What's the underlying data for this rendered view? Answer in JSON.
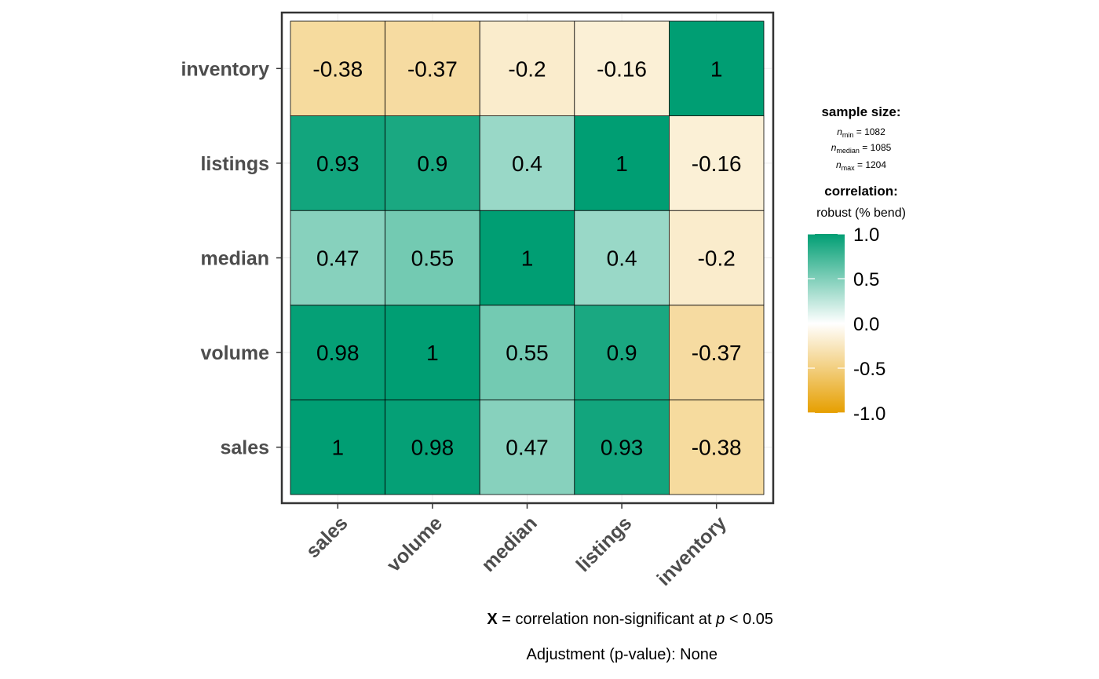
{
  "chart_data": {
    "type": "heatmap",
    "variables_x": [
      "sales",
      "volume",
      "median",
      "listings",
      "inventory"
    ],
    "variables_y": [
      "sales",
      "volume",
      "median",
      "listings",
      "inventory"
    ],
    "matrix": [
      [
        1,
        0.98,
        0.47,
        0.93,
        -0.38
      ],
      [
        0.98,
        1,
        0.55,
        0.9,
        -0.37
      ],
      [
        0.47,
        0.55,
        1,
        0.4,
        -0.2
      ],
      [
        0.93,
        0.9,
        0.4,
        1,
        -0.16
      ],
      [
        -0.38,
        -0.37,
        -0.2,
        -0.16,
        1
      ]
    ],
    "color_scale": {
      "low": "#E69F00",
      "mid": "#FFFFFF",
      "high": "#009E73",
      "limits": [
        -1,
        1
      ],
      "ticks": [
        "1.0",
        "0.5",
        "0.0",
        "-0.5",
        "-1.0"
      ]
    },
    "grid": true
  },
  "legend": {
    "sample_title": "sample size:",
    "n_symbol": "n",
    "n_min_sub": "min",
    "n_min_value": " = 1082",
    "n_median_sub": "median",
    "n_median_value": " = 1085",
    "n_max_sub": "max",
    "n_max_value": " = 1204",
    "corr_title": "correlation:",
    "corr_method": "robust (% bend)"
  },
  "caption": {
    "bold_x": "X",
    "line1_a": " = correlation non-significant at ",
    "line1_p": "p",
    "line1_b": " < 0.05",
    "line2": "Adjustment (p-value): None"
  }
}
